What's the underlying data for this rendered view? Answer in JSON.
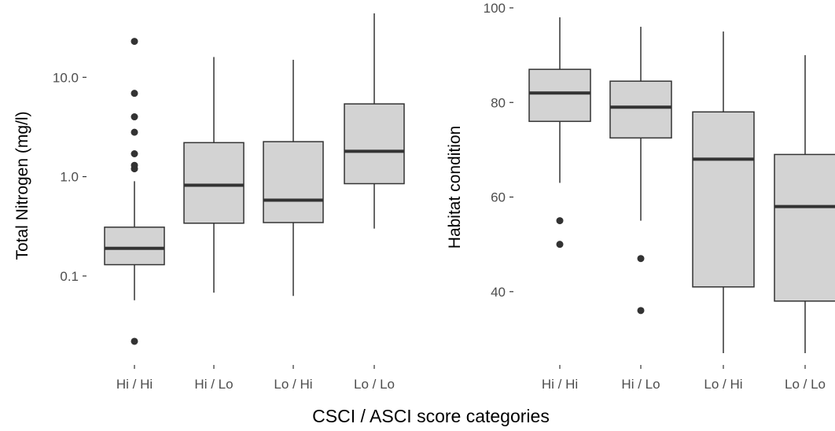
{
  "colors": {
    "box_fill": "#d3d3d3",
    "stroke": "#333333",
    "tick_text": "#4d4d4d"
  },
  "x_axis_title": "CSCI / ASCI score categories",
  "chart_data": [
    {
      "type": "boxplot",
      "ylabel": "Total Nitrogen (mg/l)",
      "yscale": "log10",
      "ylim": [
        0.015,
        50
      ],
      "yticks": [
        0.1,
        1.0,
        10.0
      ],
      "ytick_labels": [
        "0.1",
        "1.0",
        "10.0"
      ],
      "grid": false,
      "categories": [
        "Hi / Hi",
        "Hi / Lo",
        "Lo / Hi",
        "Lo / Lo"
      ],
      "boxes": [
        {
          "min": 0.057,
          "q1": 0.13,
          "median": 0.19,
          "q3": 0.31,
          "max": 0.9,
          "outliers": [
            0.022,
            1.2,
            1.3,
            1.7,
            2.8,
            4.0,
            6.9,
            23
          ]
        },
        {
          "min": 0.068,
          "q1": 0.34,
          "median": 0.82,
          "q3": 2.2,
          "max": 16,
          "outliers": []
        },
        {
          "min": 0.063,
          "q1": 0.345,
          "median": 0.58,
          "q3": 2.25,
          "max": 15,
          "outliers": []
        },
        {
          "min": 0.3,
          "q1": 0.85,
          "median": 1.8,
          "q3": 5.4,
          "max": 44,
          "outliers": []
        }
      ]
    },
    {
      "type": "boxplot",
      "ylabel": "Habitat condition",
      "yscale": "linear",
      "ylim": [
        26,
        100
      ],
      "yticks": [
        40,
        60,
        80,
        100
      ],
      "ytick_labels": [
        "40",
        "60",
        "80",
        "100"
      ],
      "grid": false,
      "categories": [
        "Hi / Hi",
        "Hi / Lo",
        "Lo / Hi",
        "Lo / Lo"
      ],
      "boxes": [
        {
          "min": 63,
          "q1": 76,
          "median": 82,
          "q3": 87,
          "max": 98,
          "outliers": [
            50,
            55
          ]
        },
        {
          "min": 55,
          "q1": 72.5,
          "median": 79,
          "q3": 84.5,
          "max": 96,
          "outliers": [
            36,
            47
          ]
        },
        {
          "min": 27,
          "q1": 41,
          "median": 68,
          "q3": 78,
          "max": 95,
          "outliers": []
        },
        {
          "min": 27,
          "q1": 38,
          "median": 58,
          "q3": 69,
          "max": 90,
          "outliers": []
        }
      ]
    }
  ]
}
